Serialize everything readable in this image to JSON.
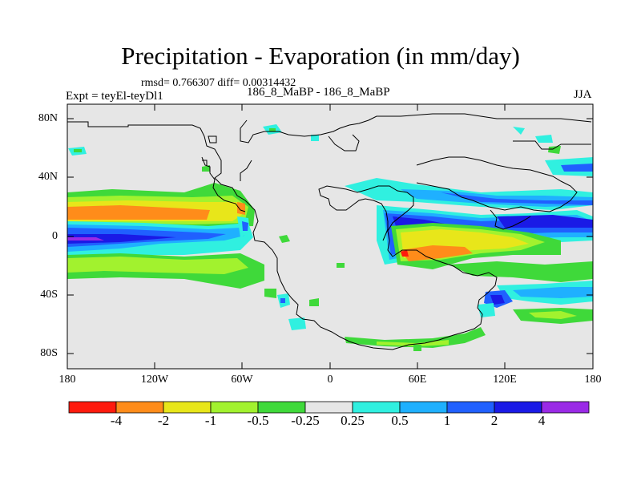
{
  "header": {
    "title": "Precipitation - Evaporation (in mm/day)",
    "stats": "rmsd= 0.766307  diff= 0.00314432",
    "experiment": "Expt = teyEl-teyDl1",
    "center_label": "186_8_MaBP - 186_8_MaBP",
    "season": "JJA"
  },
  "axes": {
    "lat_labels": [
      "80N",
      "40N",
      "0",
      "40S",
      "80S"
    ],
    "lon_labels": [
      "180",
      "120W",
      "60W",
      "0",
      "60E",
      "120E",
      "180"
    ]
  },
  "colorbar": {
    "labels": [
      "-4",
      "-2",
      "-1",
      "-0.5",
      "-0.25",
      "0.25",
      "0.5",
      "1",
      "2",
      "4"
    ],
    "colors": [
      "#ff1a0d",
      "#ff8c1a",
      "#e8e61a",
      "#a2f22e",
      "#3fd93a",
      "#e6e6e6",
      "#30f0e0",
      "#1fb0ff",
      "#2060ff",
      "#1a1ae6",
      "#9a2ae6"
    ]
  },
  "palette": {
    "neutral": "#e6e6e6",
    "coast": "#000000"
  }
}
